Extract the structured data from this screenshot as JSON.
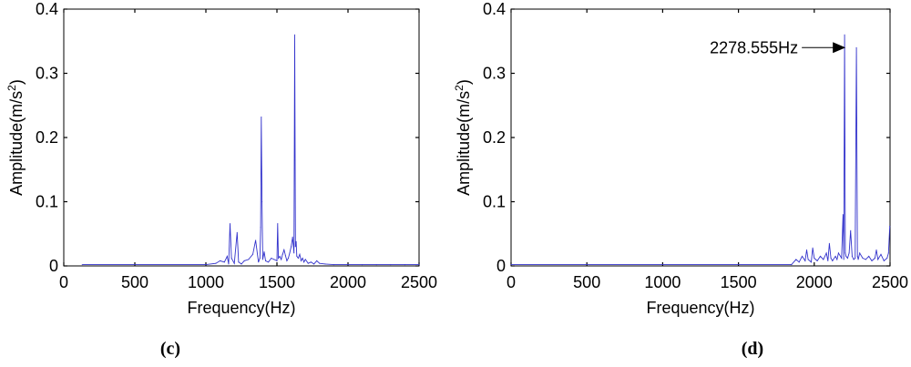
{
  "chart_data": [
    {
      "type": "line",
      "panel_label": "(c)",
      "xlabel": "Frequency(Hz)",
      "ylabel": "Amplitude(m/s",
      "ylabel_sup": "2",
      "ylabel_close": ")",
      "xlim": [
        0,
        2500
      ],
      "ylim": [
        0,
        0.4
      ],
      "xticks": [
        "0",
        "500",
        "1000",
        "1500",
        "2000",
        "2500"
      ],
      "yticks": [
        "0",
        "0.1",
        "0.2",
        "0.3",
        "0.4"
      ],
      "grid": false,
      "line_color": "#3333cc",
      "series": [
        {
          "x": [
            130,
            1000,
            1070,
            1100,
            1130,
            1150,
            1160,
            1170,
            1180,
            1200,
            1220,
            1230,
            1250,
            1270,
            1300,
            1330,
            1350,
            1370,
            1380,
            1385,
            1390,
            1395,
            1400,
            1410,
            1420,
            1440,
            1460,
            1480,
            1500,
            1505,
            1510,
            1520,
            1530,
            1540,
            1550,
            1560,
            1570,
            1580,
            1590,
            1600,
            1610,
            1620,
            1625,
            1630,
            1635,
            1640,
            1650,
            1660,
            1670,
            1680,
            1690,
            1700,
            1720,
            1740,
            1760,
            1780,
            1800,
            1840,
            1900,
            2000,
            2100,
            2200,
            2300,
            2400,
            2500
          ],
          "y": [
            0.002,
            0.002,
            0.004,
            0.008,
            0.006,
            0.015,
            0.003,
            0.066,
            0.012,
            0.004,
            0.052,
            0.006,
            0.003,
            0.008,
            0.01,
            0.018,
            0.04,
            0.006,
            0.012,
            0.06,
            0.232,
            0.1,
            0.01,
            0.022,
            0.008,
            0.006,
            0.012,
            0.01,
            0.008,
            0.066,
            0.012,
            0.015,
            0.01,
            0.018,
            0.025,
            0.016,
            0.008,
            0.012,
            0.02,
            0.03,
            0.045,
            0.02,
            0.36,
            0.03,
            0.038,
            0.015,
            0.012,
            0.018,
            0.008,
            0.012,
            0.006,
            0.01,
            0.004,
            0.006,
            0.003,
            0.008,
            0.004,
            0.003,
            0.002,
            0.002,
            0.002,
            0.002,
            0.002,
            0.002,
            0.002
          ]
        }
      ]
    },
    {
      "type": "line",
      "panel_label": "(d)",
      "xlabel": "Frequency(Hz)",
      "ylabel": "Amplitude(m/s",
      "ylabel_sup": "2",
      "ylabel_close": ")",
      "xlim": [
        0,
        2500
      ],
      "ylim": [
        0,
        0.4
      ],
      "xticks": [
        "0",
        "500",
        "1000",
        "1500",
        "2000",
        "2500"
      ],
      "yticks": [
        "0",
        "0.1",
        "0.2",
        "0.3",
        "0.4"
      ],
      "grid": false,
      "line_color": "#3333cc",
      "annotation": {
        "text": "2278.555Hz",
        "x": 2278.555,
        "y": 0.34
      },
      "series": [
        {
          "x": [
            0,
            1850,
            1880,
            1900,
            1920,
            1940,
            1950,
            1960,
            1980,
            1990,
            2000,
            2020,
            2040,
            2060,
            2080,
            2090,
            2100,
            2110,
            2120,
            2140,
            2150,
            2160,
            2180,
            2190,
            2195,
            2200,
            2205,
            2210,
            2220,
            2230,
            2240,
            2250,
            2260,
            2270,
            2278,
            2285,
            2290,
            2300,
            2320,
            2340,
            2360,
            2380,
            2400,
            2410,
            2420,
            2440,
            2460,
            2480,
            2490,
            2498
          ],
          "y": [
            0.002,
            0.002,
            0.01,
            0.006,
            0.015,
            0.008,
            0.025,
            0.01,
            0.006,
            0.028,
            0.012,
            0.008,
            0.015,
            0.01,
            0.02,
            0.008,
            0.035,
            0.012,
            0.008,
            0.015,
            0.01,
            0.02,
            0.012,
            0.08,
            0.01,
            0.36,
            0.02,
            0.015,
            0.012,
            0.02,
            0.055,
            0.015,
            0.01,
            0.012,
            0.34,
            0.015,
            0.01,
            0.02,
            0.012,
            0.01,
            0.015,
            0.008,
            0.012,
            0.025,
            0.01,
            0.018,
            0.008,
            0.012,
            0.02,
            0.062
          ]
        }
      ]
    }
  ]
}
